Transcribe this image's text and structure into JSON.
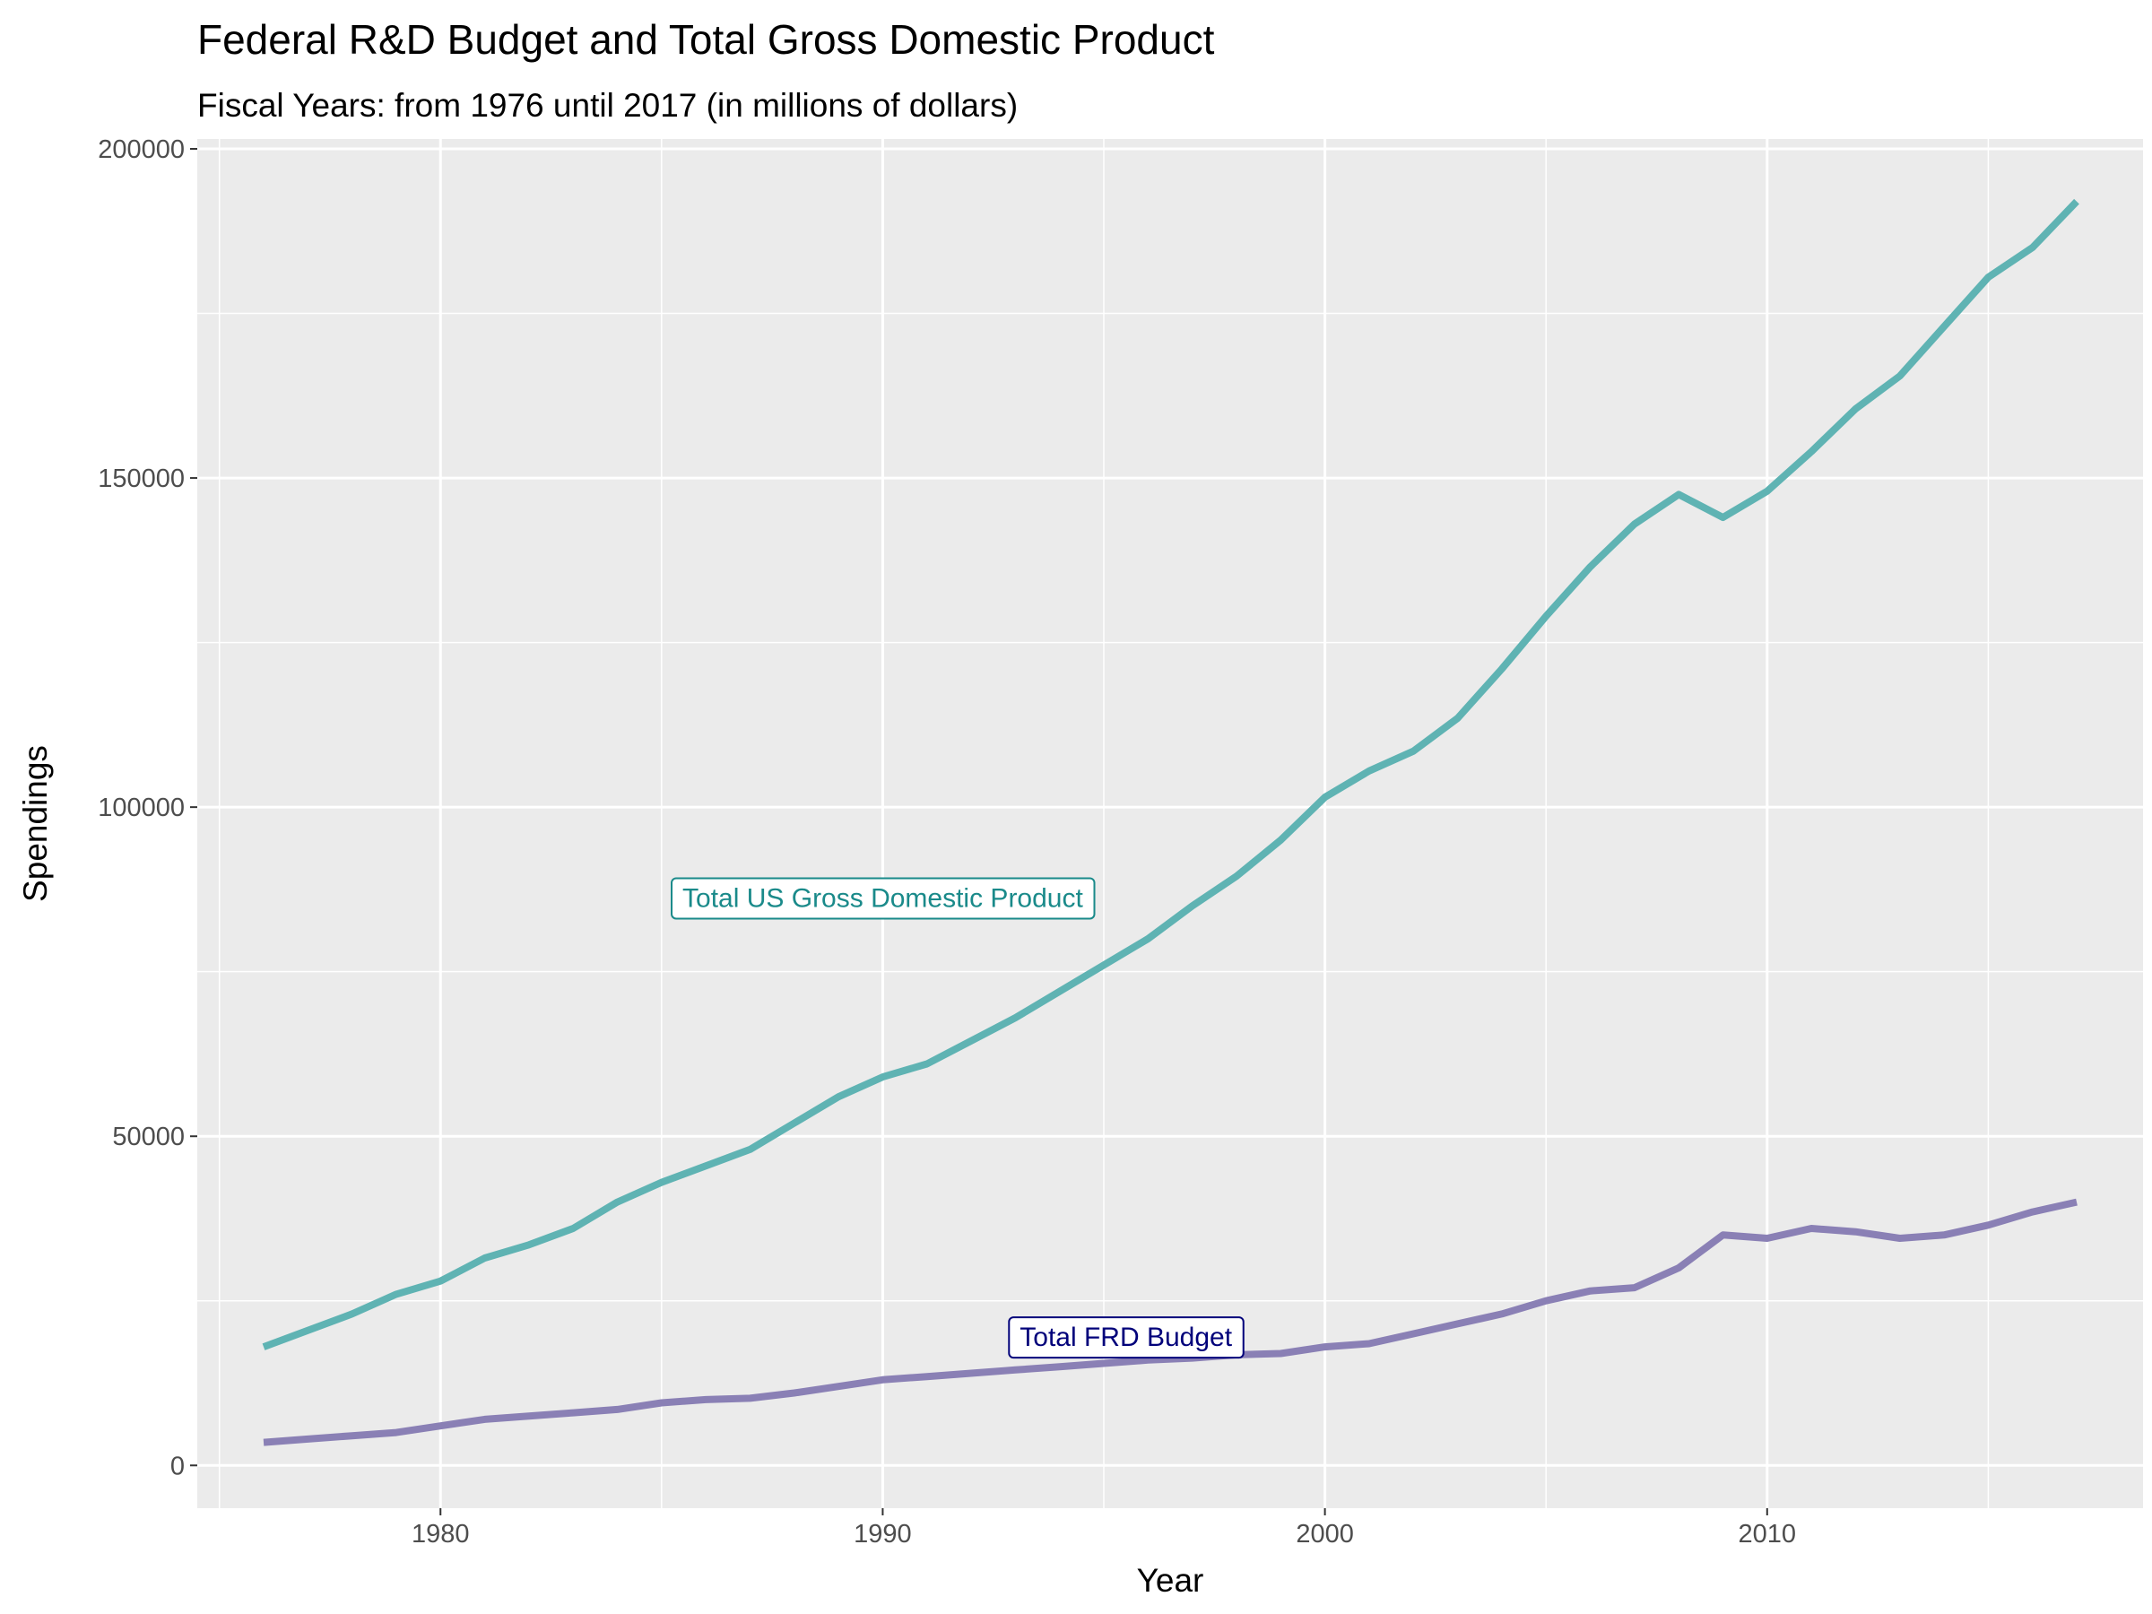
{
  "chart_data": {
    "type": "line",
    "title": "Federal R&D Budget and Total Gross Domestic Product",
    "subtitle": "Fiscal Years: from 1976 until 2017 (in millions of dollars)",
    "xlabel": "Year",
    "ylabel": "Spendings",
    "xlim": [
      1974.5,
      2018.5
    ],
    "ylim": [
      -6500,
      201500
    ],
    "x_ticks": [
      1980,
      1990,
      2000,
      2010
    ],
    "y_ticks": [
      0,
      50000,
      100000,
      150000,
      200000
    ],
    "grid": true,
    "legend": "none",
    "x": [
      1976,
      1977,
      1978,
      1979,
      1980,
      1981,
      1982,
      1983,
      1984,
      1985,
      1986,
      1987,
      1988,
      1989,
      1990,
      1991,
      1992,
      1993,
      1994,
      1995,
      1996,
      1997,
      1998,
      1999,
      2000,
      2001,
      2002,
      2003,
      2004,
      2005,
      2006,
      2007,
      2008,
      2009,
      2010,
      2011,
      2012,
      2013,
      2014,
      2015,
      2016,
      2017
    ],
    "series": [
      {
        "color": "#5fb3b3",
        "values": [
          18000,
          20500,
          23000,
          26000,
          28000,
          31500,
          33500,
          36000,
          40000,
          43000,
          45500,
          48000,
          52000,
          56000,
          59000,
          61000,
          64500,
          68000,
          72000,
          76000,
          80000,
          85000,
          89500,
          95000,
          101500,
          105500,
          108500,
          113500,
          121000,
          129000,
          136500,
          143000,
          147500,
          144000,
          148000,
          154000,
          160500,
          165500,
          173000,
          180500,
          185000,
          192000
        ],
        "label": "Total US Gross Domestic Product",
        "label_color": "#1a8a8a",
        "label_pos": [
          1990,
          86200
        ]
      },
      {
        "color": "#8a80b5",
        "values": [
          3500,
          4000,
          4500,
          5000,
          6000,
          7000,
          7500,
          8000,
          8500,
          9500,
          10000,
          10200,
          11000,
          12000,
          13000,
          13500,
          14000,
          14500,
          15000,
          15500,
          16000,
          16300,
          16800,
          17000,
          18000,
          18500,
          20000,
          21500,
          23000,
          25000,
          26500,
          27000,
          30000,
          35000,
          34500,
          36000,
          35500,
          34500,
          35000,
          36500,
          38500,
          40000
        ],
        "label": "Total FRD Budget",
        "label_color": "#00007a",
        "label_pos": [
          1995.5,
          19500
        ]
      }
    ]
  }
}
